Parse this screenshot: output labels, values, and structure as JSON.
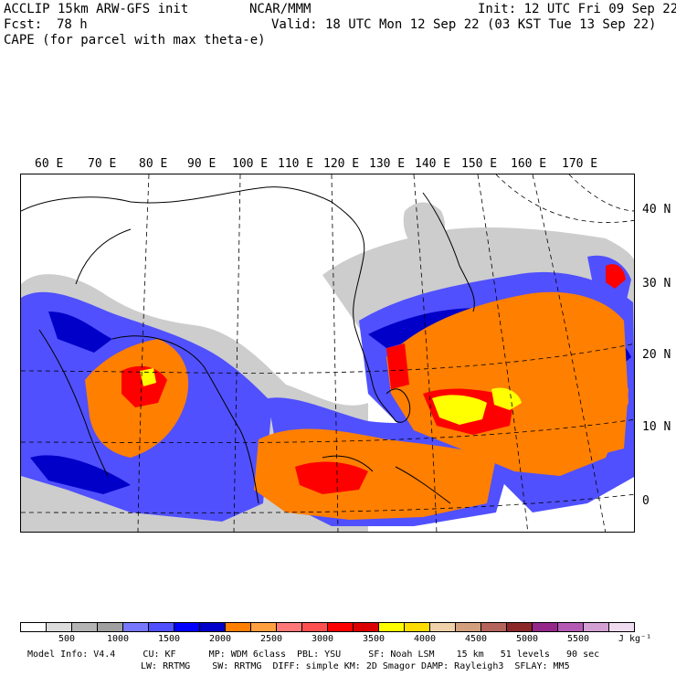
{
  "header": {
    "model_line": "ACCLIP 15km ARW-GFS init",
    "org": "NCAR/MMM",
    "init": "Init: 12 UTC Fri 09 Sep 22",
    "fcst_label": "Fcst:",
    "fcst_value": "78 h",
    "valid": "Valid: 18 UTC Mon 12 Sep 22 (03 KST Tue 13 Sep 22)",
    "field": "CAPE (for parcel with max theta-e)"
  },
  "map": {
    "lon_labels": [
      "60 E",
      "70 E",
      "80 E",
      "90 E",
      "100 E",
      "110 E",
      "120 E",
      "130 E",
      "140 E",
      "150 E",
      "160 E",
      "170 E"
    ],
    "lat_labels": [
      "40 N",
      "30 N",
      "20 N",
      "10 N",
      "0"
    ]
  },
  "colorbar": {
    "colors": [
      "#ffffff",
      "#dcdcdc",
      "#b4b4b4",
      "#a0a0a0",
      "#7878ff",
      "#5050ff",
      "#0000ff",
      "#0000c8",
      "#ff7f00",
      "#ff9f40",
      "#ff7878",
      "#ff5050",
      "#ff0000",
      "#dc0000",
      "#ffff00",
      "#ffdc00",
      "#f0d2aa",
      "#d2a07d",
      "#b4645a",
      "#8c2828",
      "#96288c",
      "#b45ab4",
      "#d2a0d2",
      "#f0dcf0"
    ],
    "ticks": [
      "500",
      "1000",
      "1500",
      "2000",
      "2500",
      "3000",
      "3500",
      "4000",
      "4500",
      "5000",
      "5500"
    ],
    "units": "J kg⁻¹"
  },
  "footer": {
    "line1": "Model Info: V4.4     CU: KF      MP: WDM 6class  PBL: YSU     SF: Noah LSM    15 km   51 levels   90 sec",
    "line2": "LW: RRTMG    SW: RRTMG  DIFF: simple KM: 2D Smagor DAMP: Rayleigh3  SFLAY: MM5"
  }
}
